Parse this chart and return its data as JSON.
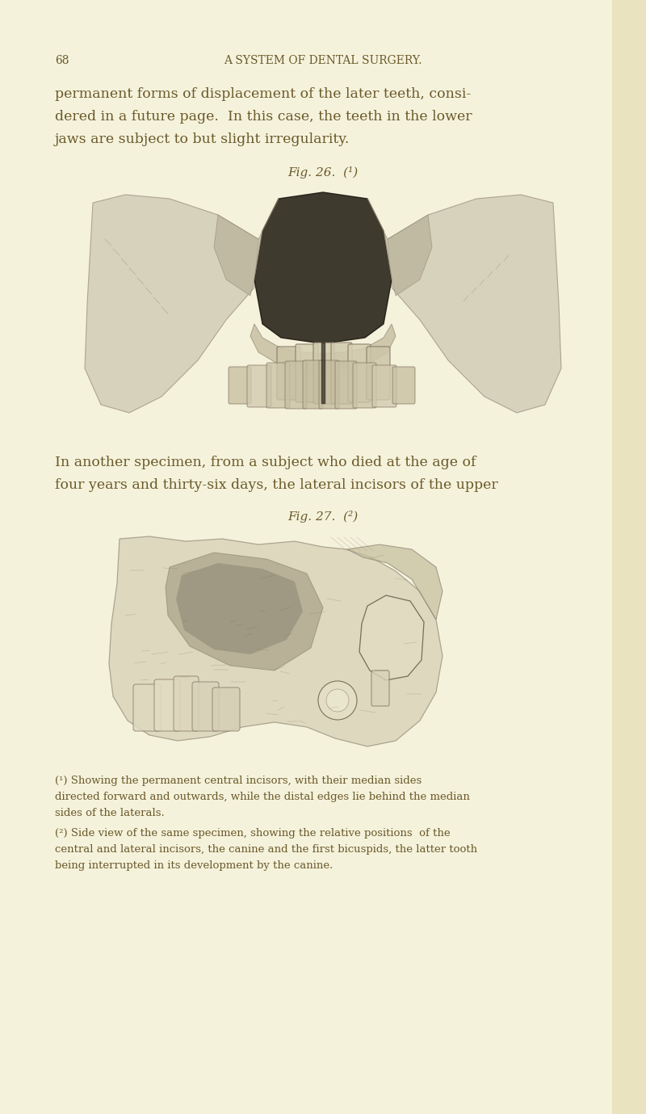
{
  "bg_color": "#f5f2dc",
  "text_color": "#6b5a2a",
  "header_number": "68",
  "header_title": "A SYSTEM OF DENTAL SURGERY.",
  "body_text_1_lines": [
    "permanent forms of displacement of the later teeth, consi-",
    "dered in a future page.  In this case, the teeth in the lower",
    "jaws are subject to but slight irregularity."
  ],
  "fig1_label": "Fig. 26.  (¹)",
  "middle_text_lines": [
    "In another specimen, from a subject who died at the age of",
    "four years and thirty-six days, the lateral incisors of the upper"
  ],
  "fig2_label": "Fig. 27.  (²)",
  "footnote_1_lines": [
    "(¹) Showing the permanent central incisors, with their median sides",
    "directed forward and outwards, while the distal edges lie behind the median",
    "sides of the laterals."
  ],
  "footnote_2_lines": [
    "(²) Side view of the same specimen, showing the relative positions  of the",
    "central and lateral incisors, the canine and the first bicuspids, the latter tooth",
    "being interrupted in its development by the canine."
  ],
  "fig_width": 8.0,
  "fig_height": 13.79,
  "dpi": 100
}
